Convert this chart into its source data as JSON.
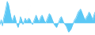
{
  "values": [
    5,
    8,
    4,
    9,
    12,
    16,
    20,
    18,
    14,
    10,
    7,
    9,
    11,
    8,
    5,
    3,
    6,
    10,
    8,
    5,
    7,
    9,
    7,
    8,
    9,
    8,
    6,
    5,
    7,
    9,
    11,
    9,
    7,
    8,
    10,
    11,
    9,
    7,
    6,
    8,
    10,
    12,
    11,
    9,
    7,
    5,
    4,
    3,
    5,
    7,
    9,
    10,
    8,
    6,
    5,
    4,
    2,
    0,
    1,
    2,
    4,
    6,
    8,
    9,
    11,
    13,
    14,
    15,
    13,
    11,
    9,
    8,
    10,
    11,
    13,
    12,
    10,
    8,
    11,
    13
  ],
  "baseline": 6,
  "line_color": "#5bc8f5",
  "fill_color": "#5bc8f5",
  "background_color": "#ffffff",
  "linewidth": 0.6
}
